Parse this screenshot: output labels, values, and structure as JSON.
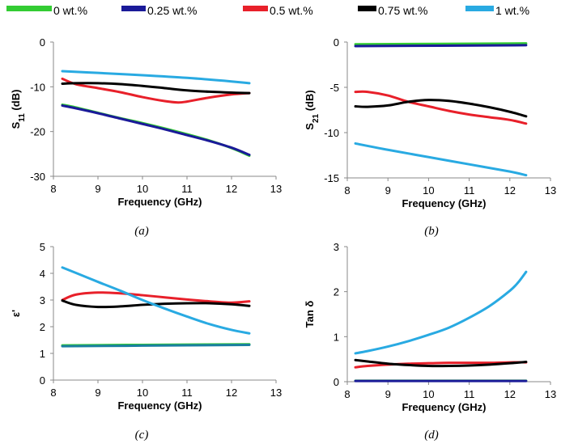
{
  "legend": [
    {
      "label": "0 wt.%",
      "color": "#33cc33"
    },
    {
      "label": "0.25 wt.%",
      "color": "#1a1a99"
    },
    {
      "label": "0.5 wt.%",
      "color": "#e8202a"
    },
    {
      "label": "0.75 wt.%",
      "color": "#000000"
    },
    {
      "label": "1 wt.%",
      "color": "#29aae2"
    }
  ],
  "chart_data": [
    {
      "type": "line",
      "caption": "(a)",
      "xlabel": "Frequency (GHz)",
      "ylabel_main": "S",
      "ylabel_sub": "11",
      "ylabel_tail": " (dB)",
      "xlim": [
        8,
        13
      ],
      "ylim": [
        -30,
        0
      ],
      "xticks": [
        8,
        9,
        10,
        11,
        12,
        13
      ],
      "yticks": [
        0,
        -10,
        -20,
        -30
      ],
      "series": [
        {
          "name": "0 wt.%",
          "color": "#33cc33",
          "x": [
            8.2,
            8.5,
            9,
            9.5,
            10,
            10.5,
            11,
            11.5,
            12,
            12.4
          ],
          "y": [
            -14,
            -14.6,
            -15.8,
            -17,
            -18.1,
            -19.3,
            -20.6,
            -22,
            -23.7,
            -25.4
          ]
        },
        {
          "name": "0.25 wt.%",
          "color": "#1a1a99",
          "x": [
            8.2,
            8.5,
            9,
            9.5,
            10,
            10.5,
            11,
            11.5,
            12,
            12.4
          ],
          "y": [
            -14.2,
            -14.8,
            -15.9,
            -17.1,
            -18.3,
            -19.5,
            -20.8,
            -22.1,
            -23.6,
            -25.2
          ]
        },
        {
          "name": "0.5 wt.%",
          "color": "#e8202a",
          "x": [
            8.2,
            8.5,
            9,
            9.5,
            10,
            10.5,
            10.8,
            11,
            11.5,
            12,
            12.4
          ],
          "y": [
            -8.2,
            -9.4,
            -10.3,
            -11.2,
            -12.3,
            -13.2,
            -13.5,
            -13.3,
            -12.4,
            -11.7,
            -11.4
          ]
        },
        {
          "name": "0.75 wt.%",
          "color": "#000000",
          "x": [
            8.2,
            8.5,
            9,
            9.5,
            10,
            10.5,
            11,
            11.5,
            12,
            12.4
          ],
          "y": [
            -9.3,
            -9.2,
            -9.2,
            -9.4,
            -9.8,
            -10.3,
            -10.8,
            -11.1,
            -11.3,
            -11.4
          ]
        },
        {
          "name": "1 wt.%",
          "color": "#29aae2",
          "x": [
            8.2,
            9,
            10,
            11,
            12,
            12.4
          ],
          "y": [
            -6.5,
            -6.9,
            -7.4,
            -8.0,
            -8.8,
            -9.2
          ]
        }
      ]
    },
    {
      "type": "line",
      "caption": "(b)",
      "xlabel": "Frequency (GHz)",
      "ylabel_main": "S",
      "ylabel_sub": "21",
      "ylabel_tail": " (dB)",
      "xlim": [
        8,
        13
      ],
      "ylim": [
        -15,
        0
      ],
      "xticks": [
        8,
        9,
        10,
        11,
        12,
        13
      ],
      "yticks": [
        0,
        -5,
        -10,
        -15
      ],
      "series": [
        {
          "name": "0 wt.%",
          "color": "#33cc33",
          "x": [
            8.2,
            12.4
          ],
          "y": [
            -0.25,
            -0.15
          ]
        },
        {
          "name": "0.25 wt.%",
          "color": "#1a1a99",
          "x": [
            8.2,
            12.4
          ],
          "y": [
            -0.45,
            -0.35
          ]
        },
        {
          "name": "0.5 wt.%",
          "color": "#e8202a",
          "x": [
            8.2,
            8.5,
            9,
            9.5,
            10,
            10.5,
            11,
            11.5,
            12,
            12.4
          ],
          "y": [
            -5.5,
            -5.5,
            -5.9,
            -6.6,
            -7.1,
            -7.6,
            -8.0,
            -8.3,
            -8.6,
            -9.0
          ]
        },
        {
          "name": "0.75 wt.%",
          "color": "#000000",
          "x": [
            8.2,
            8.5,
            9,
            9.5,
            10,
            10.5,
            11,
            11.5,
            12,
            12.4
          ],
          "y": [
            -7.1,
            -7.15,
            -7.0,
            -6.6,
            -6.4,
            -6.5,
            -6.8,
            -7.2,
            -7.7,
            -8.2
          ]
        },
        {
          "name": "1 wt.%",
          "color": "#29aae2",
          "x": [
            8.2,
            9,
            10,
            11,
            12,
            12.4
          ],
          "y": [
            -11.2,
            -11.9,
            -12.7,
            -13.5,
            -14.3,
            -14.7
          ]
        }
      ]
    },
    {
      "type": "line",
      "caption": "(c)",
      "xlabel": "Frequency (GHz)",
      "ylabel_main": "ε'",
      "ylabel_sub": "",
      "ylabel_tail": "",
      "xlim": [
        8,
        13
      ],
      "ylim": [
        0,
        5
      ],
      "xticks": [
        8,
        9,
        10,
        11,
        12,
        13
      ],
      "yticks": [
        0,
        1,
        2,
        3,
        4,
        5
      ],
      "series": [
        {
          "name": "0 wt.%",
          "color": "#33cc33",
          "x": [
            8.2,
            10,
            12.4
          ],
          "y": [
            1.3,
            1.32,
            1.34
          ]
        },
        {
          "name": "0.25 wt.%",
          "color": "#1a7fa0",
          "x": [
            8.2,
            10,
            12.4
          ],
          "y": [
            1.27,
            1.29,
            1.32
          ]
        },
        {
          "name": "0.5 wt.%",
          "color": "#e8202a",
          "x": [
            8.2,
            8.5,
            9,
            9.5,
            10,
            10.5,
            11,
            11.5,
            12,
            12.4
          ],
          "y": [
            3.0,
            3.2,
            3.28,
            3.25,
            3.18,
            3.1,
            3.02,
            2.95,
            2.9,
            2.95
          ]
        },
        {
          "name": "0.75 wt.%",
          "color": "#000000",
          "x": [
            8.2,
            8.5,
            9,
            9.5,
            10,
            10.5,
            11,
            11.5,
            12,
            12.4
          ],
          "y": [
            2.98,
            2.82,
            2.74,
            2.76,
            2.82,
            2.86,
            2.88,
            2.88,
            2.84,
            2.78
          ]
        },
        {
          "name": "1 wt.%",
          "color": "#29aae2",
          "x": [
            8.2,
            8.5,
            9,
            9.5,
            10,
            10.5,
            11,
            11.5,
            12,
            12.4
          ],
          "y": [
            4.22,
            4.02,
            3.68,
            3.35,
            3.0,
            2.68,
            2.38,
            2.1,
            1.88,
            1.75
          ]
        }
      ]
    },
    {
      "type": "line",
      "caption": "(d)",
      "xlabel": "Frequency (GHz)",
      "ylabel_main": "Tan δ",
      "ylabel_sub": "",
      "ylabel_tail": "",
      "xlim": [
        8,
        13
      ],
      "ylim": [
        0,
        3
      ],
      "xticks": [
        8,
        9,
        10,
        11,
        12,
        13
      ],
      "yticks": [
        0,
        1,
        2,
        3
      ],
      "series": [
        {
          "name": "0 wt.%",
          "color": "#33cc33",
          "x": [
            8.2,
            12.4
          ],
          "y": [
            0.02,
            0.02
          ]
        },
        {
          "name": "0.25 wt.%",
          "color": "#1a1a99",
          "x": [
            8.2,
            12.4
          ],
          "y": [
            0.015,
            0.015
          ]
        },
        {
          "name": "0.5 wt.%",
          "color": "#e8202a",
          "x": [
            8.2,
            8.5,
            9,
            9.5,
            10,
            10.5,
            11,
            11.5,
            12,
            12.4
          ],
          "y": [
            0.32,
            0.35,
            0.38,
            0.4,
            0.41,
            0.42,
            0.42,
            0.42,
            0.43,
            0.43
          ]
        },
        {
          "name": "0.75 wt.%",
          "color": "#000000",
          "x": [
            8.2,
            8.5,
            9,
            9.5,
            10,
            10.5,
            11,
            11.5,
            12,
            12.4
          ],
          "y": [
            0.48,
            0.45,
            0.4,
            0.37,
            0.35,
            0.35,
            0.36,
            0.38,
            0.41,
            0.44
          ]
        },
        {
          "name": "1 wt.%",
          "color": "#29aae2",
          "x": [
            8.2,
            8.5,
            9,
            9.5,
            10,
            10.5,
            11,
            11.5,
            12,
            12.2,
            12.4
          ],
          "y": [
            0.63,
            0.68,
            0.78,
            0.9,
            1.04,
            1.2,
            1.42,
            1.68,
            2.02,
            2.2,
            2.44
          ]
        }
      ]
    }
  ]
}
